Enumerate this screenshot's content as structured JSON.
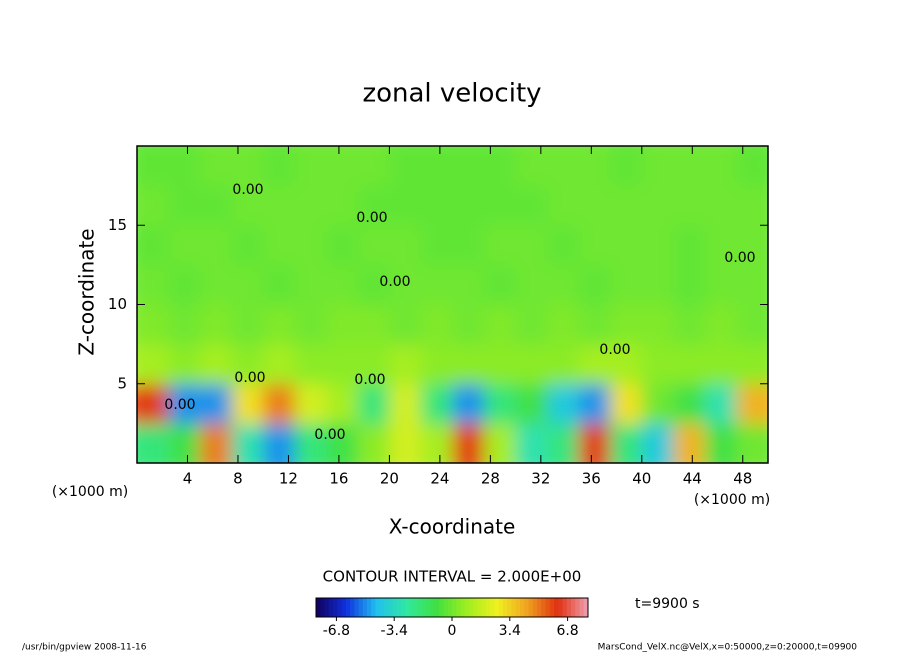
{
  "chart_data": {
    "type": "heatmap",
    "title": "zonal velocity",
    "x_label": "X-coordinate",
    "y_label": "Z-coordinate",
    "x_unit": "(×1000 m)",
    "y_unit": "(×1000 m)",
    "contour_interval": "CONTOUR INTERVAL = 2.000E+00",
    "contour_label": "0.00",
    "time_label": "t=9900 s",
    "footer_left": "/usr/bin/gpview  2008-11-16",
    "footer_right": "MarsCond_VelX.nc@VelX,x=0:50000,z=0:20000,t=09900",
    "xlim": [
      0,
      50
    ],
    "ylim": [
      0,
      20
    ],
    "xticks": [
      4,
      8,
      12,
      16,
      20,
      24,
      28,
      32,
      36,
      40,
      44,
      48
    ],
    "yticks": [
      5,
      10,
      15
    ],
    "x": [
      1.25,
      3.75,
      6.25,
      8.75,
      11.25,
      13.75,
      16.25,
      18.75,
      21.25,
      23.75,
      26.25,
      28.75,
      31.25,
      33.75,
      36.25,
      38.75,
      41.25,
      43.75,
      46.25,
      48.75
    ],
    "y": [
      1.25,
      3.75,
      6.25,
      8.75,
      11.25,
      13.75,
      16.25,
      18.75
    ],
    "values": [
      [
        -2,
        -1,
        5,
        -3,
        -5,
        -2,
        -1,
        0.5,
        2,
        1,
        6,
        1,
        -3,
        -2,
        6,
        -2,
        -4,
        4,
        -1,
        0
      ],
      [
        6,
        -5,
        -5,
        3,
        5,
        2,
        1,
        -2,
        2,
        -2,
        -5,
        -2,
        -1,
        -4,
        -5,
        3,
        0,
        -1,
        -3,
        4
      ],
      [
        1,
        0.5,
        1,
        0.5,
        1,
        0.5,
        0.5,
        0.5,
        1,
        0.5,
        0.5,
        0.5,
        0.5,
        0.5,
        1,
        1,
        0.5,
        0.5,
        0.5,
        0.5
      ],
      [
        0.3,
        0,
        0.3,
        0,
        0.3,
        0,
        0.3,
        0.3,
        0,
        0.3,
        0,
        0.3,
        0,
        0.3,
        0,
        0.3,
        0.3,
        0,
        0.3,
        0
      ],
      [
        0,
        -0.3,
        0,
        0,
        -0.3,
        0,
        0,
        -0.3,
        0,
        0,
        0,
        -0.3,
        0,
        0,
        -0.3,
        0,
        0,
        -0.3,
        0,
        0
      ],
      [
        -0.3,
        0,
        0,
        -0.3,
        0,
        0,
        -0.3,
        0,
        0,
        -0.3,
        -0.3,
        0,
        0,
        -0.3,
        0,
        0,
        0,
        -0.3,
        0,
        0
      ],
      [
        0,
        -0.3,
        -0.3,
        0,
        0,
        0,
        0,
        -0.3,
        -0.3,
        -0.3,
        -0.3,
        -0.3,
        -0.3,
        0,
        0,
        0,
        0,
        0,
        0,
        0
      ],
      [
        -0.3,
        -0.3,
        0,
        0,
        -0.3,
        0,
        0,
        0,
        -0.3,
        -0.3,
        -0.3,
        -0.3,
        0,
        0,
        0,
        -0.3,
        0,
        0,
        0,
        -0.3
      ]
    ],
    "clim": [
      -8,
      8
    ],
    "colorbar_ticks": [
      -6.8,
      -3.4,
      0,
      3.4,
      6.8
    ],
    "colormap": [
      "#10005a",
      "#1030e0",
      "#20c0f0",
      "#30e8a0",
      "#40e040",
      "#a0ee20",
      "#f0f020",
      "#f0a020",
      "#e03010",
      "#f0a0b0"
    ]
  }
}
